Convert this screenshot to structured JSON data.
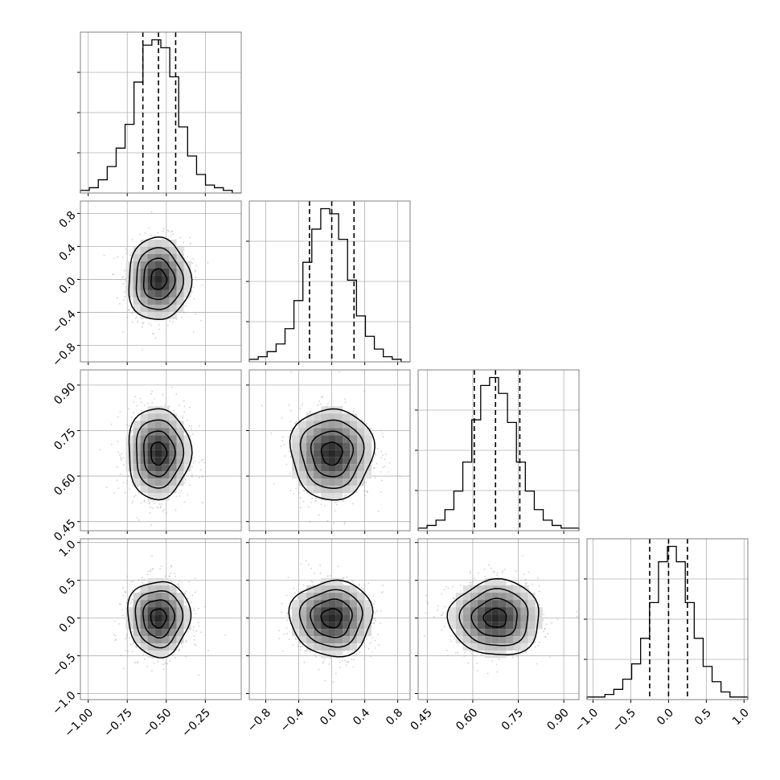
{
  "chart_data": {
    "type": "corner",
    "n_params": 4,
    "grid": true,
    "params": [
      {
        "name": "",
        "mean": -0.55,
        "sigma": 0.1,
        "range": [
          -1.05,
          -0.02
        ],
        "ticks": [
          -1.0,
          -0.75,
          -0.5,
          -0.25
        ],
        "tick_labels": [
          "−1.00",
          "−0.75",
          "−0.50",
          "−0.25"
        ],
        "quantiles": [
          -0.65,
          -0.55,
          -0.44
        ],
        "hist_counts": [
          1,
          2,
          5,
          10,
          17,
          26,
          42,
          56,
          58,
          55,
          44,
          25,
          14,
          7,
          3,
          2,
          1,
          0
        ]
      },
      {
        "name": "",
        "mean": 0.0,
        "sigma": 0.25,
        "range": [
          -1.0,
          0.95
        ],
        "ticks": [
          -0.8,
          -0.4,
          0.0,
          0.4,
          0.8
        ],
        "tick_labels": [
          "−0.8",
          "−0.4",
          "0.0",
          "0.4",
          "0.8"
        ],
        "quantiles": [
          -0.27,
          0.0,
          0.27
        ],
        "hist_counts": [
          1,
          2,
          4,
          7,
          13,
          24,
          39,
          52,
          60,
          58,
          48,
          32,
          18,
          10,
          5,
          2,
          1,
          0
        ]
      },
      {
        "name": "",
        "mean": 0.675,
        "sigma": 0.075,
        "range": [
          0.42,
          0.95
        ],
        "ticks": [
          0.45,
          0.6,
          0.75,
          0.9
        ],
        "tick_labels": [
          "0.45",
          "0.60",
          "0.75",
          "0.90"
        ],
        "quantiles": [
          0.605,
          0.675,
          0.755
        ],
        "hist_counts": [
          1,
          2,
          4,
          8,
          15,
          26,
          42,
          55,
          58,
          52,
          41,
          26,
          15,
          8,
          4,
          2,
          1,
          1
        ]
      },
      {
        "name": "",
        "mean": 0.0,
        "sigma": 0.25,
        "range": [
          -1.08,
          1.05
        ],
        "ticks": [
          -1.0,
          -0.5,
          0.0,
          0.5,
          1.0
        ],
        "tick_labels": [
          "−1.0",
          "−0.5",
          "0.0",
          "0.5",
          "1.0"
        ],
        "quantiles": [
          -0.25,
          0.0,
          0.25
        ],
        "hist_counts": [
          1,
          1,
          2,
          4,
          8,
          14,
          24,
          38,
          54,
          60,
          54,
          38,
          24,
          13,
          7,
          3,
          1,
          1
        ]
      }
    ],
    "contour_levels_sigma": [
      0.5,
      1.0,
      1.5,
      2.0
    ]
  }
}
